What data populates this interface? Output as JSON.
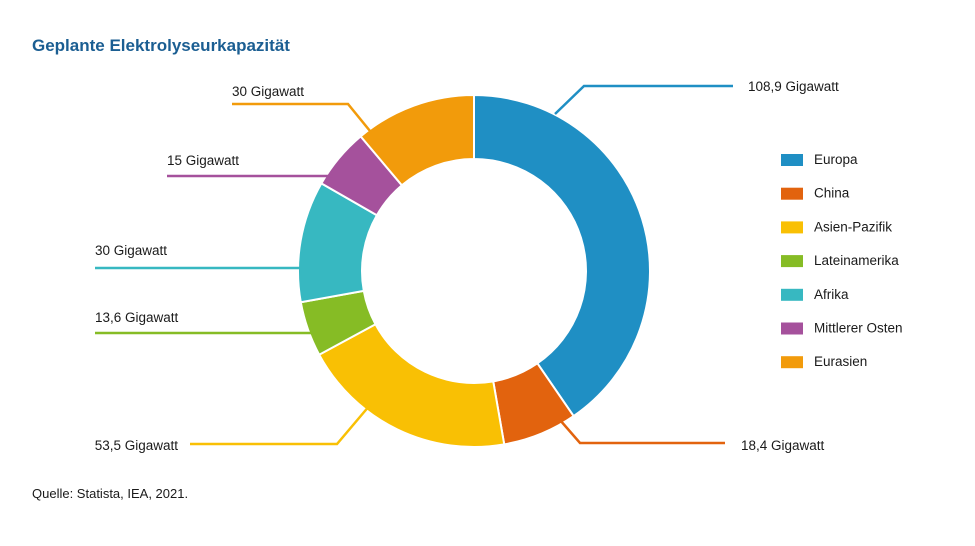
{
  "chart_data": {
    "type": "pie",
    "variant": "donut",
    "title": "Geplante Elektrolyseurkapazität",
    "unit": "Gigawatt",
    "source": "Quelle: Statista, IEA, 2021.",
    "legend_position": "right",
    "slices": [
      {
        "name": "Europa",
        "value": 108.9,
        "label": "108,9 Gigawatt",
        "color": "#1f8fc4"
      },
      {
        "name": "China",
        "value": 18.4,
        "label": "18,4 Gigawatt",
        "color": "#e2630e"
      },
      {
        "name": "Asien-Pazifik",
        "value": 53.5,
        "label": "53,5 Gigawatt",
        "color": "#f9c004"
      },
      {
        "name": "Lateinamerika",
        "value": 13.6,
        "label": "13,6 Gigawatt",
        "color": "#86bc25"
      },
      {
        "name": "Afrika",
        "value": 30,
        "label": "30 Gigawatt",
        "color": "#37b8c1"
      },
      {
        "name": "Mittlerer Osten",
        "value": 15,
        "label": "15 Gigawatt",
        "color": "#a5519c"
      },
      {
        "name": "Eurasien",
        "value": 30,
        "label": "30 Gigawatt",
        "color": "#f29b0b"
      }
    ]
  }
}
